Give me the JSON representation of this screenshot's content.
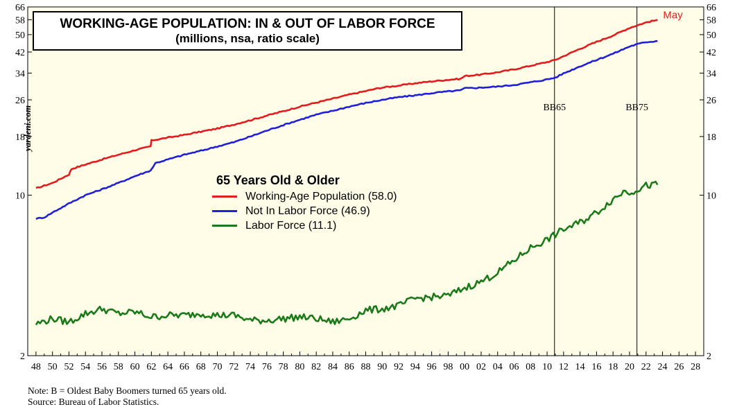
{
  "chart_data": {
    "type": "line",
    "title": "WORKING-AGE POPULATION: IN & OUT OF LABOR FORCE",
    "subtitle": "(millions, nsa, ratio scale)",
    "legend_title": "65 Years Old & Older",
    "y_scale": "log",
    "ylim": [
      2,
      66
    ],
    "xlim": [
      1947,
      2029
    ],
    "y_ticks": [
      2,
      10,
      18,
      26,
      34,
      42,
      50,
      58,
      66
    ],
    "x_ticks": [
      "48",
      "50",
      "52",
      "54",
      "56",
      "58",
      "60",
      "62",
      "64",
      "66",
      "68",
      "70",
      "72",
      "74",
      "76",
      "78",
      "80",
      "82",
      "84",
      "86",
      "88",
      "90",
      "92",
      "94",
      "96",
      "98",
      "00",
      "02",
      "04",
      "06",
      "08",
      "10",
      "12",
      "14",
      "16",
      "18",
      "20",
      "22",
      "24",
      "26",
      "28"
    ],
    "vlines": [
      {
        "label": "BB65",
        "x": 2010.9
      },
      {
        "label": "BB75",
        "x": 2020.9
      }
    ],
    "end_label": "May",
    "series": [
      {
        "name": "Working-Age Population (58.0)",
        "color": "#e41a1c",
        "points": [
          [
            1948,
            10.7
          ],
          [
            1950,
            11.3
          ],
          [
            1952,
            12.3
          ],
          [
            1952.3,
            13.0
          ],
          [
            1954,
            13.6
          ],
          [
            1956,
            14.3
          ],
          [
            1958,
            15.0
          ],
          [
            1960,
            15.7
          ],
          [
            1961.9,
            16.3
          ],
          [
            1962,
            17.3
          ],
          [
            1964,
            17.8
          ],
          [
            1966,
            18.3
          ],
          [
            1968,
            18.9
          ],
          [
            1970,
            19.5
          ],
          [
            1972,
            20.3
          ],
          [
            1974,
            21.2
          ],
          [
            1976,
            22.2
          ],
          [
            1978,
            23.2
          ],
          [
            1980,
            24.3
          ],
          [
            1982,
            25.3
          ],
          [
            1984,
            26.3
          ],
          [
            1986,
            27.4
          ],
          [
            1988,
            28.4
          ],
          [
            1989.5,
            29.2
          ],
          [
            1990,
            29.4
          ],
          [
            1992,
            30.0
          ],
          [
            1994,
            30.7
          ],
          [
            1996,
            31.3
          ],
          [
            1998,
            31.8
          ],
          [
            1999.5,
            32.1
          ],
          [
            2000,
            33.0
          ],
          [
            2002,
            33.5
          ],
          [
            2004,
            34.3
          ],
          [
            2006,
            35.3
          ],
          [
            2008,
            36.6
          ],
          [
            2010,
            38.0
          ],
          [
            2011,
            38.8
          ],
          [
            2012,
            40.3
          ],
          [
            2014,
            43.4
          ],
          [
            2016,
            46.5
          ],
          [
            2018,
            49.6
          ],
          [
            2020,
            53.5
          ],
          [
            2021,
            55.0
          ],
          [
            2022,
            56.5
          ],
          [
            2023.4,
            58.0
          ]
        ]
      },
      {
        "name": "Not In Labor Force (46.9)",
        "color": "#1f1fdc",
        "points": [
          [
            1948,
            7.9
          ],
          [
            1949,
            8.0
          ],
          [
            1950,
            8.4
          ],
          [
            1952,
            9.2
          ],
          [
            1954,
            10.0
          ],
          [
            1956,
            10.6
          ],
          [
            1958,
            11.3
          ],
          [
            1960,
            12.1
          ],
          [
            1961.9,
            12.8
          ],
          [
            1962.5,
            13.8
          ],
          [
            1964,
            14.3
          ],
          [
            1966,
            15.0
          ],
          [
            1968,
            15.6
          ],
          [
            1970,
            16.3
          ],
          [
            1972,
            17.0
          ],
          [
            1974,
            18.0
          ],
          [
            1976,
            19.1
          ],
          [
            1978,
            20.2
          ],
          [
            1980,
            21.3
          ],
          [
            1982,
            22.4
          ],
          [
            1984,
            23.3
          ],
          [
            1986,
            24.3
          ],
          [
            1988,
            25.2
          ],
          [
            1990,
            26.0
          ],
          [
            1992,
            26.7
          ],
          [
            1994,
            27.2
          ],
          [
            1996,
            27.8
          ],
          [
            1998,
            28.3
          ],
          [
            1999.5,
            28.6
          ],
          [
            2000,
            29.2
          ],
          [
            2002,
            29.4
          ],
          [
            2004,
            29.7
          ],
          [
            2006,
            30.2
          ],
          [
            2008,
            31.0
          ],
          [
            2010,
            31.9
          ],
          [
            2011,
            32.5
          ],
          [
            2012,
            33.9
          ],
          [
            2014,
            36.4
          ],
          [
            2016,
            38.8
          ],
          [
            2018,
            41.3
          ],
          [
            2020,
            44.4
          ],
          [
            2021,
            45.5
          ],
          [
            2022,
            46.4
          ],
          [
            2023.4,
            46.9
          ]
        ]
      },
      {
        "name": "Labor Force (11.1)",
        "color": "#1a7a1a",
        "points": [
          [
            1948,
            2.75
          ],
          [
            1950,
            2.9
          ],
          [
            1952,
            2.8
          ],
          [
            1954,
            3.05
          ],
          [
            1956,
            3.2
          ],
          [
            1958,
            3.05
          ],
          [
            1960,
            3.1
          ],
          [
            1962,
            2.95
          ],
          [
            1964,
            3.0
          ],
          [
            1966,
            3.0
          ],
          [
            1968,
            3.05
          ],
          [
            1970,
            3.0
          ],
          [
            1972,
            3.0
          ],
          [
            1974,
            2.85
          ],
          [
            1976,
            2.85
          ],
          [
            1978,
            2.9
          ],
          [
            1980,
            2.95
          ],
          [
            1982,
            2.9
          ],
          [
            1984,
            2.8
          ],
          [
            1986,
            2.9
          ],
          [
            1988,
            3.15
          ],
          [
            1990,
            3.2
          ],
          [
            1992,
            3.3
          ],
          [
            1994,
            3.55
          ],
          [
            1996,
            3.6
          ],
          [
            1998,
            3.65
          ],
          [
            2000,
            3.95
          ],
          [
            2002,
            4.2
          ],
          [
            2004,
            4.6
          ],
          [
            2006,
            5.2
          ],
          [
            2008,
            5.9
          ],
          [
            2010,
            6.4
          ],
          [
            2012,
            7.1
          ],
          [
            2014,
            7.6
          ],
          [
            2016,
            8.4
          ],
          [
            2018,
            9.6
          ],
          [
            2019.5,
            10.5
          ],
          [
            2020,
            10.3
          ],
          [
            2021,
            10.6
          ],
          [
            2022,
            11.0
          ],
          [
            2023.4,
            11.1
          ]
        ]
      }
    ]
  },
  "notes": {
    "line1": "Note: B = Oldest Baby Boomers turned 65 years old.",
    "line2": "Source: Bureau of Labor Statistics."
  },
  "watermark": "yardeni.com"
}
